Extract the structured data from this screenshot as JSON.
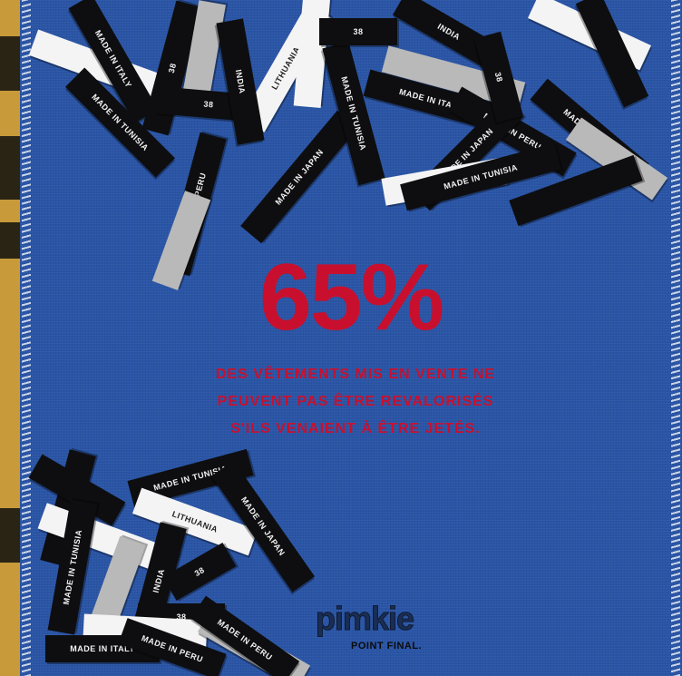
{
  "statistic": {
    "value": "65%",
    "lines": [
      "DES VÊTEMENTS MIS EN VENTE NE",
      "PEUVENT PAS ÊTRE REVALORISÉS",
      "S'ILS VENAIENT À ÊTRE JETÉS."
    ],
    "color": "#c8102e"
  },
  "brand": {
    "logo": "pimkie",
    "tagline": "POINT FINAL."
  },
  "labels": {
    "top": [
      {
        "text": "MADE IN ITALY"
      },
      {
        "text": "MADE IN PERU"
      },
      {
        "text": "MADE IN TUNISIA"
      },
      {
        "text": "MADE IN PERU"
      },
      {
        "text": "MADE IN JAPAN"
      },
      {
        "text": "MADE IN TUNISIA"
      },
      {
        "text": "MADE IN ITALY"
      },
      {
        "text": "MADE IN TUNISIA"
      },
      {
        "text": "MADE IN PERU"
      },
      {
        "text": "MADE IN JAPAN"
      },
      {
        "text": "INDIA"
      },
      {
        "text": "LITHUANIA"
      },
      {
        "text": "38"
      },
      {
        "text": "38"
      },
      {
        "text": "38"
      },
      {
        "text": "38"
      },
      {
        "text": "INDIA"
      }
    ],
    "bottom": [
      {
        "text": "MADE IN TUNISIA"
      },
      {
        "text": "MADE IN JAPAN"
      },
      {
        "text": "LITHUANIA"
      },
      {
        "text": "MADE IN TUNISIA"
      },
      {
        "text": "INDIA"
      },
      {
        "text": "38"
      },
      {
        "text": "38"
      },
      {
        "text": "MADE IN ITALY"
      },
      {
        "text": "MADE IN PERU"
      },
      {
        "text": "MADE IN PERU"
      }
    ]
  },
  "colors": {
    "fabric": "#2a55a6",
    "accent_red": "#c8102e",
    "label_black": "#0e0e10",
    "label_white": "#f4f4f4"
  }
}
